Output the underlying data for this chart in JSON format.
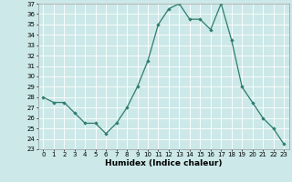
{
  "x": [
    0,
    1,
    2,
    3,
    4,
    5,
    6,
    7,
    8,
    9,
    10,
    11,
    12,
    13,
    14,
    15,
    16,
    17,
    18,
    19,
    20,
    21,
    22,
    23
  ],
  "y": [
    28,
    27.5,
    27.5,
    26.5,
    25.5,
    25.5,
    24.5,
    25.5,
    27,
    29,
    31.5,
    35,
    36.5,
    37,
    35.5,
    35.5,
    34.5,
    37,
    33.5,
    29,
    27.5,
    26,
    25,
    23.5
  ],
  "line_color": "#2e7d6e",
  "marker": "D",
  "markersize": 1.8,
  "linewidth": 0.9,
  "xlabel": "Humidex (Indice chaleur)",
  "ylabel": "",
  "ylim": [
    23,
    37
  ],
  "xlim": [
    -0.5,
    23.5
  ],
  "yticks": [
    23,
    24,
    25,
    26,
    27,
    28,
    29,
    30,
    31,
    32,
    33,
    34,
    35,
    36,
    37
  ],
  "xticks": [
    0,
    1,
    2,
    3,
    4,
    5,
    6,
    7,
    8,
    9,
    10,
    11,
    12,
    13,
    14,
    15,
    16,
    17,
    18,
    19,
    20,
    21,
    22,
    23
  ],
  "bg_color": "#cce8e8",
  "grid_color": "#ffffff",
  "tick_labelsize": 5.0,
  "xlabel_fontsize": 6.5
}
